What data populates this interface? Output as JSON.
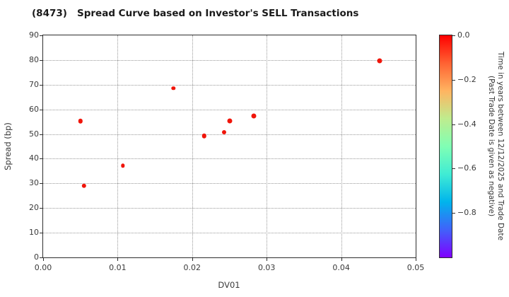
{
  "title": "(8473)   Spread Curve based on Investor's SELL Transactions",
  "chart_data": {
    "type": "scatter",
    "title": "(8473)   Spread Curve based on Investor's SELL Transactions",
    "xlabel": "DV01",
    "ylabel": "Spread (bp)",
    "xlim": [
      0.0,
      0.05
    ],
    "ylim": [
      0,
      90
    ],
    "grid": "dotted",
    "legend_position": "none",
    "x_ticks": [
      {
        "v": 0.0,
        "label": "0.00"
      },
      {
        "v": 0.01,
        "label": "0.01"
      },
      {
        "v": 0.02,
        "label": "0.02"
      },
      {
        "v": 0.03,
        "label": "0.03"
      },
      {
        "v": 0.04,
        "label": "0.04"
      },
      {
        "v": 0.05,
        "label": "0.05"
      }
    ],
    "y_ticks": [
      {
        "v": 0,
        "label": "0"
      },
      {
        "v": 10,
        "label": "10"
      },
      {
        "v": 20,
        "label": "20"
      },
      {
        "v": 30,
        "label": "30"
      },
      {
        "v": 40,
        "label": "40"
      },
      {
        "v": 50,
        "label": "50"
      },
      {
        "v": 60,
        "label": "60"
      },
      {
        "v": 70,
        "label": "70"
      },
      {
        "v": 80,
        "label": "80"
      },
      {
        "v": 90,
        "label": "90"
      }
    ],
    "point_color": "#f0150a",
    "points": [
      {
        "x": 0.005,
        "y": 55.2,
        "t": 0.0,
        "r": 3.2
      },
      {
        "x": 0.0055,
        "y": 29.0,
        "t": 0.0,
        "r": 3.2
      },
      {
        "x": 0.0107,
        "y": 37.2,
        "t": 0.0,
        "r": 2.7
      },
      {
        "x": 0.0175,
        "y": 68.5,
        "t": 0.0,
        "r": 2.7
      },
      {
        "x": 0.0216,
        "y": 49.2,
        "t": 0.0,
        "r": 3.2
      },
      {
        "x": 0.0243,
        "y": 50.8,
        "t": 0.0,
        "r": 3.0
      },
      {
        "x": 0.025,
        "y": 55.2,
        "t": 0.0,
        "r": 3.5
      },
      {
        "x": 0.0283,
        "y": 57.2,
        "t": 0.0,
        "r": 3.5
      },
      {
        "x": 0.0452,
        "y": 79.8,
        "t": 0.0,
        "r": 3.5
      }
    ],
    "colorbar": {
      "label_line1": "Time in years between 12/12/2025 and Trade Date",
      "label_line2": "(Past Trade Date is given as negative)",
      "vmax": 0.0,
      "vmin": -1.0,
      "ticks": [
        {
          "v": 0.0,
          "label": "0.0"
        },
        {
          "v": -0.2,
          "label": "−0.2"
        },
        {
          "v": -0.4,
          "label": "−0.4"
        },
        {
          "v": -0.6,
          "label": "−0.6"
        },
        {
          "v": -0.8,
          "label": "−0.8"
        }
      ],
      "gradient_top_to_bottom": [
        "#ff0000",
        "#ff6232",
        "#ffb461",
        "#bfec8e",
        "#80ffb4",
        "#40ecd4",
        "#00b4ec",
        "#4062fa",
        "#8000ff"
      ]
    }
  }
}
